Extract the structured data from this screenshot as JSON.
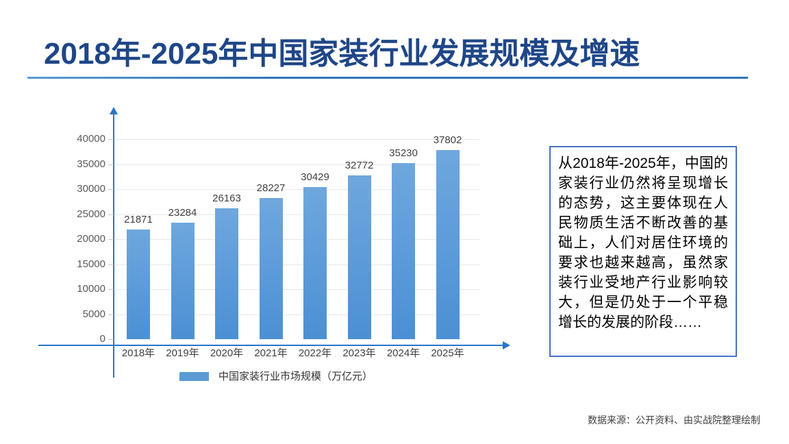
{
  "header": {
    "title": "2018年-2025年中国家装行业发展规模及增速"
  },
  "chart_data": {
    "type": "bar",
    "title": "2018年-2025年中国家装行业发展规模及增速",
    "categories": [
      "2018年",
      "2019年",
      "2020年",
      "2021年",
      "2022年",
      "2023年",
      "2024年",
      "2025年"
    ],
    "values": [
      21871,
      23284,
      26163,
      28227,
      30429,
      32772,
      35230,
      37802
    ],
    "series_name": "中国家装行业市场规模（万亿元）",
    "xlabel": "",
    "ylabel": "",
    "ylim": [
      0,
      40000
    ],
    "ytick_step": 5000,
    "yticks": [
      0,
      5000,
      10000,
      15000,
      20000,
      25000,
      30000,
      35000,
      40000
    ],
    "grid": true,
    "data_labels": true,
    "legend_position": "bottom",
    "bar_color": "#5B9BD5"
  },
  "legend": {
    "label": "中国家装行业市场规模（万亿元）",
    "swatch_color": "#5B9BD5"
  },
  "annotation": {
    "text": "从2018年-2025年，中国的家装行业仍然将呈现增长的态势，这主要体现在人民物质生活不断改善的基础上，人们对居住环境的要求也越来越高，虽然家装行业受地产行业影响较大，但是仍处于一个平稳增长的发展的阶段……",
    "border_color": "#4472C4"
  },
  "footer": {
    "source": "数据来源：公开资料、由实战院整理绘制"
  },
  "colors": {
    "title": "#1F4687",
    "axis": "#2776C6",
    "grid": "#E8E8E8",
    "bar": "#5B9BD5",
    "data_label": "#404040",
    "tick_label": "#595959"
  }
}
